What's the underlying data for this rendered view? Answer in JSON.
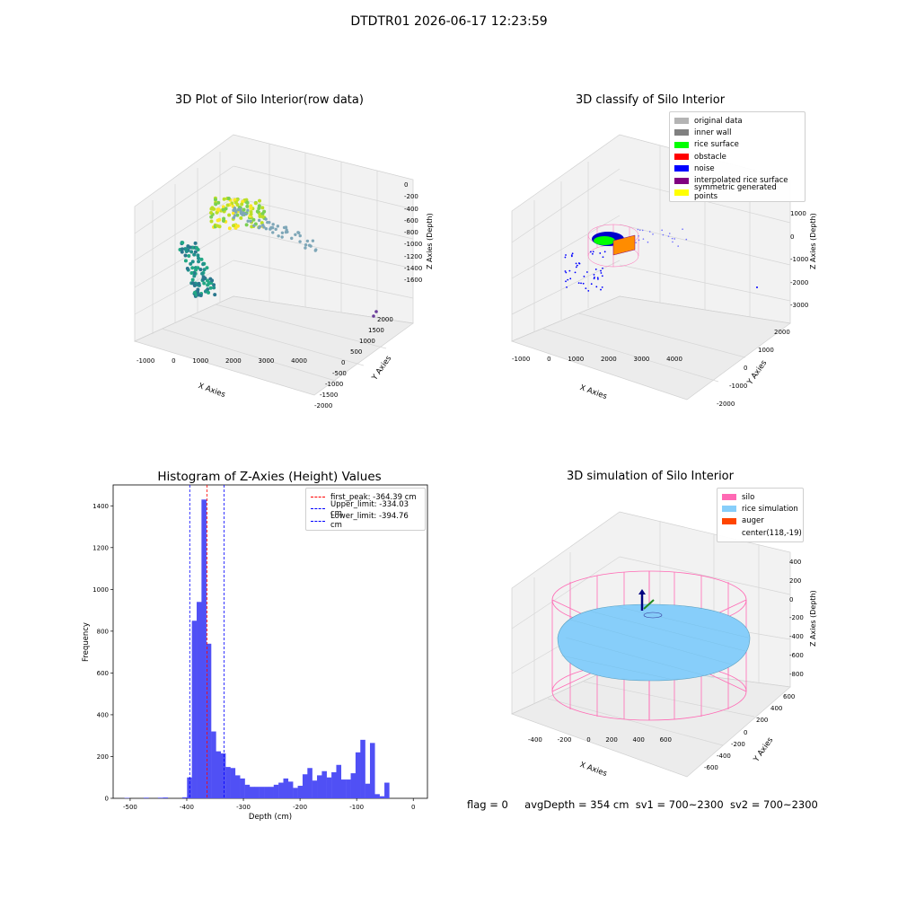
{
  "suptitle": "DTDTR01 2026-06-17 12:23:59",
  "footer": {
    "flag": "flag = 0",
    "avg_depth": "avgDepth = 354 cm",
    "sv1": "sv1 = 700~2300",
    "sv2": "sv2 = 700~2300"
  },
  "colors": {
    "histogram_bar": "#5050f5",
    "peak_line": "#ff0000",
    "limit_line": "#0000ff",
    "silo": "#ff69b4",
    "rice_simulation": "#87cefa",
    "auger": "#ff4500"
  },
  "chart_data": [
    {
      "type": "scatter",
      "title": "3D Plot of Silo Interior(row data)",
      "xlabel": "X Axies",
      "ylabel": "Y Axies",
      "zlabel": "Z Axies (Depth)",
      "x_ticks": [
        "-1000",
        "0",
        "1000",
        "2000",
        "3000",
        "4000"
      ],
      "y_ticks": [
        "-2000",
        "-1500",
        "-1000",
        "-500",
        "0",
        "500",
        "1000",
        "1500",
        "2000"
      ],
      "z_ticks": [
        "0",
        "-200",
        "-400",
        "-600",
        "-800",
        "-1000",
        "-1200",
        "-1400",
        "-1600"
      ],
      "colormap": "viridis by depth"
    },
    {
      "type": "scatter",
      "title": "3D classify of Silo Interior",
      "xlabel": "X Axies",
      "ylabel": "Y Axies",
      "zlabel": "Z Axies (Depth)",
      "x_ticks": [
        "-1000",
        "0",
        "1000",
        "2000",
        "3000",
        "4000"
      ],
      "y_ticks": [
        "-2000",
        "-1000",
        "0",
        "1000",
        "2000"
      ],
      "z_ticks": [
        "1000",
        "0",
        "-1000",
        "-2000",
        "-3000"
      ],
      "legend": [
        {
          "label": "original data",
          "color": "#b4b4b4"
        },
        {
          "label": "inner wall",
          "color": "#808080"
        },
        {
          "label": "rice surface",
          "color": "#00ff00"
        },
        {
          "label": "obstacle",
          "color": "#ff0000"
        },
        {
          "label": "noise",
          "color": "#0000ff"
        },
        {
          "label": "interpolated rice surface",
          "color": "#800080"
        },
        {
          "label": "symmetric generated points",
          "color": "#ffff00"
        }
      ],
      "legend_position": "top-right"
    },
    {
      "type": "bar",
      "title": "Histogram of Z-Axies (Height) Values",
      "xlabel": "Depth (cm)",
      "ylabel": "Frequency",
      "xlim": [
        -530,
        25
      ],
      "ylim": [
        0,
        1500
      ],
      "x_ticks": [
        -500,
        -400,
        -300,
        -200,
        -100,
        0
      ],
      "y_ticks": [
        0,
        200,
        400,
        600,
        800,
        1000,
        1200,
        1400
      ],
      "bin_width": 8.5,
      "bins": [
        {
          "x": -510,
          "y": 2
        },
        {
          "x": -476,
          "y": 3
        },
        {
          "x": -451,
          "y": 3
        },
        {
          "x": -442,
          "y": 4
        },
        {
          "x": -408,
          "y": 5
        },
        {
          "x": -399.5,
          "y": 100
        },
        {
          "x": -391,
          "y": 850
        },
        {
          "x": -382.5,
          "y": 940
        },
        {
          "x": -374,
          "y": 1430
        },
        {
          "x": -365.5,
          "y": 740
        },
        {
          "x": -357,
          "y": 320
        },
        {
          "x": -348.5,
          "y": 225
        },
        {
          "x": -340,
          "y": 215
        },
        {
          "x": -331.5,
          "y": 150
        },
        {
          "x": -323,
          "y": 145
        },
        {
          "x": -314.5,
          "y": 110
        },
        {
          "x": -306,
          "y": 95
        },
        {
          "x": -297.5,
          "y": 65
        },
        {
          "x": -289,
          "y": 55
        },
        {
          "x": -280.5,
          "y": 55
        },
        {
          "x": -272,
          "y": 55
        },
        {
          "x": -263.5,
          "y": 55
        },
        {
          "x": -255,
          "y": 55
        },
        {
          "x": -246.5,
          "y": 65
        },
        {
          "x": -238,
          "y": 75
        },
        {
          "x": -229.5,
          "y": 95
        },
        {
          "x": -221,
          "y": 80
        },
        {
          "x": -212.5,
          "y": 50
        },
        {
          "x": -204,
          "y": 60
        },
        {
          "x": -195.5,
          "y": 115
        },
        {
          "x": -187,
          "y": 145
        },
        {
          "x": -178.5,
          "y": 85
        },
        {
          "x": -170,
          "y": 110
        },
        {
          "x": -161.5,
          "y": 130
        },
        {
          "x": -153,
          "y": 100
        },
        {
          "x": -144.5,
          "y": 125
        },
        {
          "x": -136,
          "y": 160
        },
        {
          "x": -127.5,
          "y": 90
        },
        {
          "x": -119,
          "y": 90
        },
        {
          "x": -110.5,
          "y": 120
        },
        {
          "x": -102,
          "y": 220
        },
        {
          "x": -93.5,
          "y": 280
        },
        {
          "x": -85,
          "y": 70
        },
        {
          "x": -76.5,
          "y": 265
        },
        {
          "x": -68,
          "y": 20
        },
        {
          "x": -59.5,
          "y": 10
        },
        {
          "x": -51,
          "y": 75
        }
      ],
      "vlines": [
        {
          "label": "first_peak: -364.39 cm",
          "x": -364.39,
          "style": "peak"
        },
        {
          "label": "Upper_limit: -334.03 cm",
          "x": -334.03,
          "style": "limit"
        },
        {
          "label": "Lower_limit: -394.76 cm",
          "x": -394.76,
          "style": "limit"
        }
      ],
      "legend_position": "top-right"
    },
    {
      "type": "scatter",
      "title": "3D simulation of Silo Interior",
      "xlabel": "X Axies",
      "ylabel": "Y Axies",
      "zlabel": "Z Axies (Depth)",
      "x_ticks": [
        "-400",
        "-200",
        "0",
        "200",
        "400",
        "600"
      ],
      "y_ticks": [
        "-600",
        "-400",
        "-200",
        "0",
        "200",
        "400",
        "600"
      ],
      "z_ticks": [
        "400",
        "200",
        "0",
        "-200",
        "-400",
        "-600",
        "-800"
      ],
      "legend": [
        {
          "label": "silo",
          "color": "#ff69b4"
        },
        {
          "label": "rice simulation",
          "color": "#87cefa"
        },
        {
          "label": "auger",
          "color": "#ff4500"
        },
        {
          "label": "center(118,-19)",
          "color": ""
        }
      ],
      "legend_position": "top-right"
    }
  ]
}
